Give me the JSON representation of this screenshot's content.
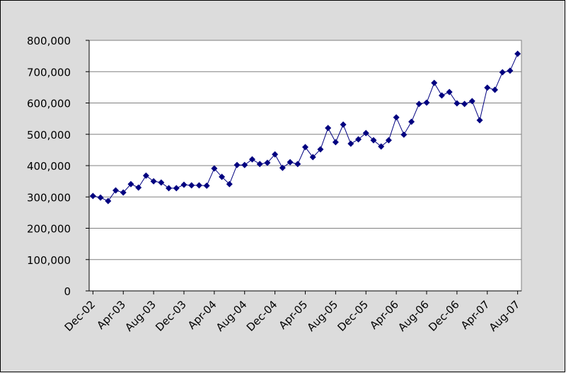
{
  "chart_data": {
    "type": "line",
    "categories": [
      "Dec-02",
      null,
      null,
      null,
      "Apr-03",
      null,
      null,
      null,
      "Aug-03",
      null,
      null,
      null,
      "Dec-03",
      null,
      null,
      null,
      "Apr-04",
      null,
      null,
      null,
      "Aug-04",
      null,
      null,
      null,
      "Dec-04",
      null,
      null,
      null,
      "Apr-05",
      null,
      null,
      null,
      "Aug-05",
      null,
      null,
      null,
      "Dec-05",
      null,
      null,
      null,
      "Apr-06",
      null,
      null,
      null,
      "Aug-06",
      null,
      null,
      null,
      "Dec-06",
      null,
      null,
      null,
      "Apr-07",
      null,
      null,
      null,
      "Aug-07"
    ],
    "series": [
      {
        "color": "#000080",
        "values": [
          303000,
          298000,
          287000,
          321000,
          314000,
          341000,
          330000,
          368000,
          350000,
          346000,
          328000,
          328000,
          339000,
          337000,
          337000,
          336000,
          391000,
          364000,
          341000,
          402000,
          402000,
          420000,
          405000,
          409000,
          436000,
          393000,
          411000,
          405000,
          459000,
          427000,
          452000,
          520000,
          475000,
          531000,
          470000,
          484000,
          504000,
          481000,
          461000,
          481000,
          554000,
          499000,
          540000,
          597000,
          601000,
          664000,
          624000,
          635000,
          599000,
          597000,
          606000,
          545000,
          649000,
          642000,
          698000,
          703000,
          757000
        ]
      }
    ],
    "ylim": [
      0,
      800000
    ],
    "yticks": [
      0,
      {
        "value": 100000,
        "label": "100,000"
      },
      {
        "value": 200000,
        "label": "200,000"
      },
      {
        "value": 300000,
        "label": "300,000"
      },
      {
        "value": 400000,
        "label": "400,000"
      },
      {
        "value": 500000,
        "label": "500,000"
      },
      {
        "value": 600000,
        "label": "600,000"
      },
      {
        "value": 700000,
        "label": "700,000"
      },
      {
        "value": 800000,
        "label": "800,000"
      }
    ],
    "grid": true
  }
}
